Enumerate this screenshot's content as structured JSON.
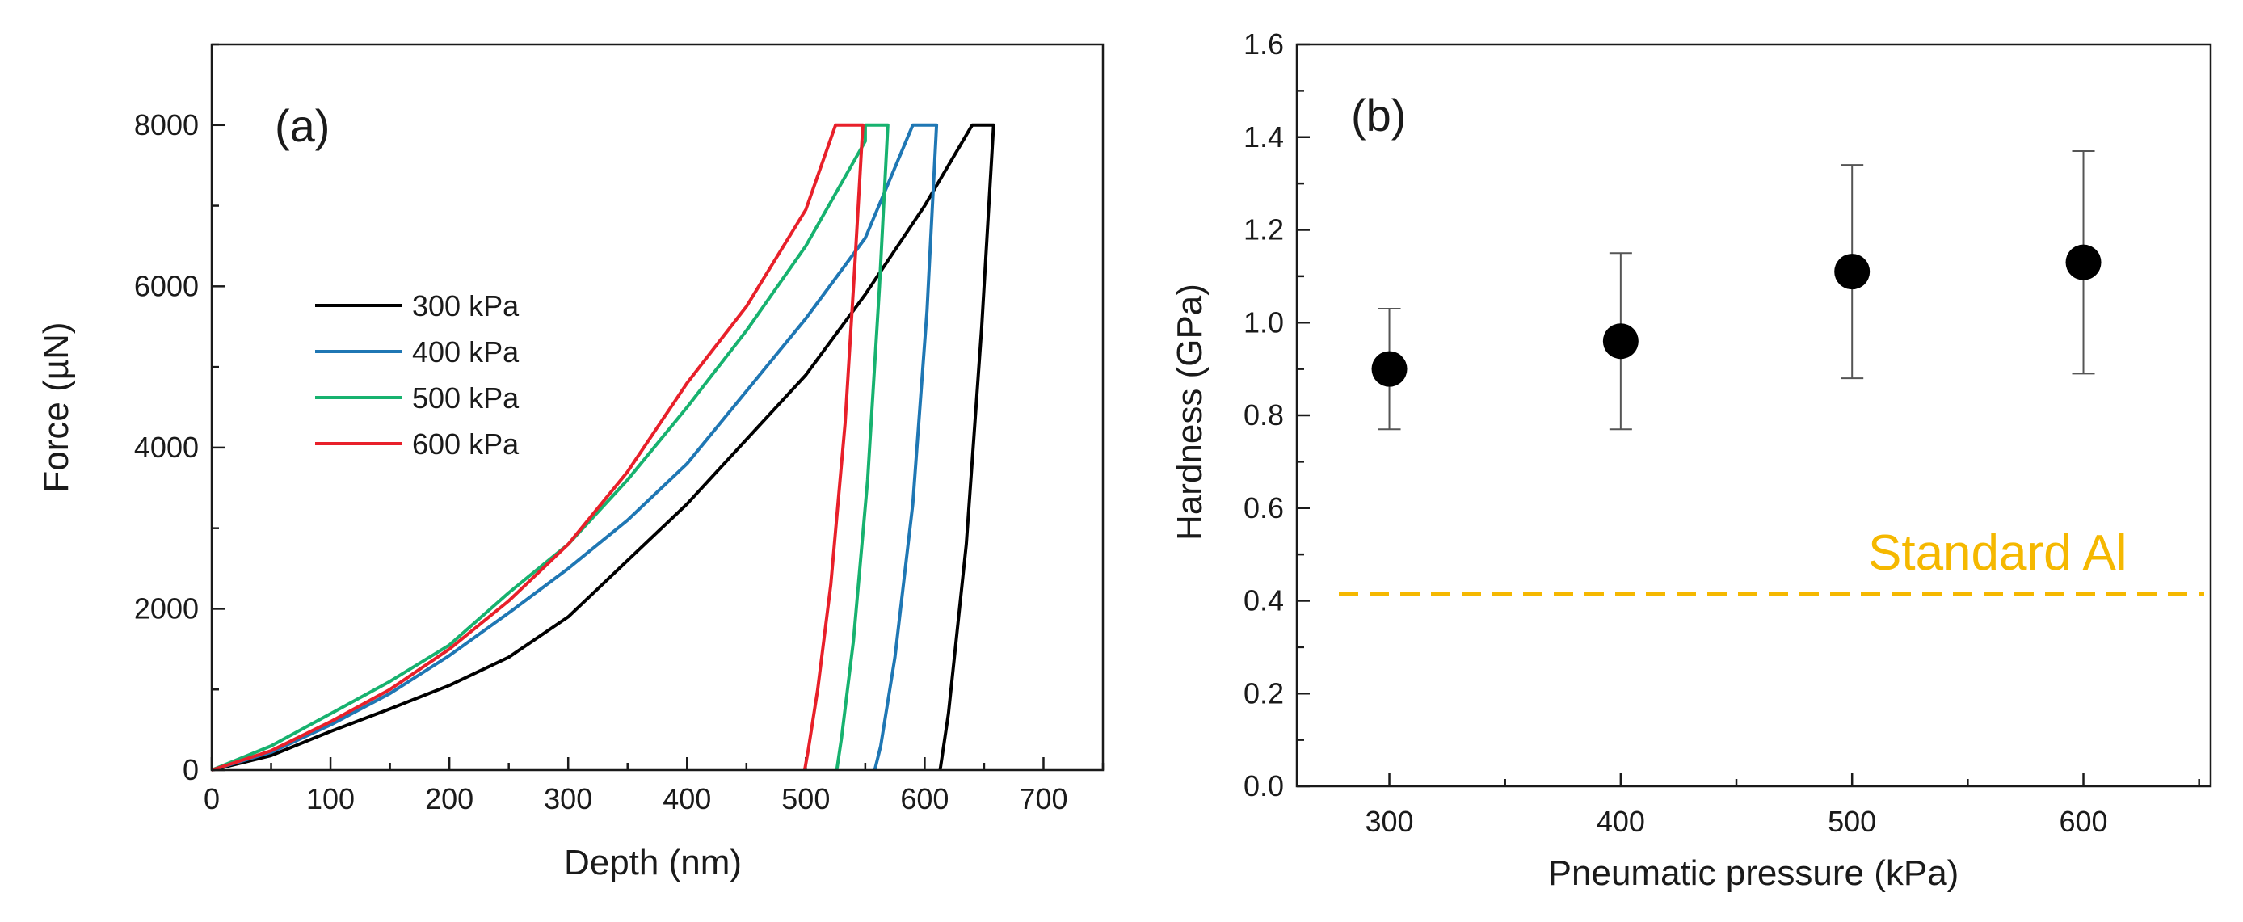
{
  "chart_data": [
    {
      "type": "line",
      "panel_label": "(a)",
      "xlabel": "Depth (nm)",
      "ylabel": "Force (µN)",
      "xlim": [
        0,
        750
      ],
      "ylim": [
        0,
        9000
      ],
      "x_ticks": [
        "0",
        "100",
        "200",
        "300",
        "400",
        "500",
        "600",
        "700"
      ],
      "y_ticks": [
        "0",
        "2000",
        "4000",
        "6000",
        "8000"
      ],
      "legend_position": "center-left",
      "series": [
        {
          "name": "300 kPa",
          "color": "#000000",
          "x": [
            0,
            50,
            100,
            150,
            200,
            250,
            300,
            350,
            400,
            450,
            500,
            550,
            600,
            640,
            658,
            648,
            635,
            620,
            613
          ],
          "y": [
            0,
            180,
            480,
            760,
            1050,
            1400,
            1900,
            2600,
            3300,
            4100,
            4900,
            5900,
            7000,
            8000,
            8000,
            5500,
            2800,
            700,
            0
          ]
        },
        {
          "name": "400 kPa",
          "color": "#1f77b4",
          "x": [
            0,
            50,
            100,
            150,
            200,
            250,
            300,
            350,
            400,
            450,
            500,
            550,
            590,
            610,
            602,
            590,
            575,
            563,
            558
          ],
          "y": [
            0,
            220,
            560,
            950,
            1420,
            1950,
            2500,
            3100,
            3800,
            4700,
            5600,
            6600,
            8000,
            8000,
            5700,
            3300,
            1400,
            300,
            0
          ]
        },
        {
          "name": "500 kPa",
          "color": "#17b26f",
          "x": [
            0,
            50,
            100,
            150,
            200,
            250,
            300,
            350,
            400,
            450,
            500,
            550,
            550,
            569,
            562,
            552,
            540,
            530,
            526
          ],
          "y": [
            0,
            300,
            700,
            1100,
            1550,
            2200,
            2800,
            3600,
            4500,
            5450,
            6500,
            7800,
            8000,
            8000,
            6000,
            3600,
            1600,
            400,
            0
          ]
        },
        {
          "name": "600 kPa",
          "color": "#e8202a",
          "x": [
            0,
            50,
            100,
            150,
            200,
            250,
            300,
            350,
            400,
            450,
            500,
            525,
            548,
            541,
            533,
            521,
            510,
            502,
            499
          ],
          "y": [
            0,
            240,
            600,
            1000,
            1500,
            2100,
            2800,
            3700,
            4800,
            5750,
            6950,
            8000,
            8000,
            6200,
            4300,
            2300,
            1000,
            250,
            0
          ]
        }
      ]
    },
    {
      "type": "scatter",
      "panel_label": "(b)",
      "xlabel": "Pneumatic pressure (kPa)",
      "ylabel": "Hardness (GPa)",
      "xlim": [
        260,
        655
      ],
      "ylim": [
        0.0,
        1.6
      ],
      "x_ticks": [
        "300",
        "400",
        "500",
        "600"
      ],
      "y_ticks": [
        "0.0",
        "0.2",
        "0.4",
        "0.6",
        "0.8",
        "1.0",
        "1.2",
        "1.4",
        "1.6"
      ],
      "points": [
        {
          "x": 300,
          "y": 0.9,
          "err_low": 0.77,
          "err_high": 1.03
        },
        {
          "x": 400,
          "y": 0.96,
          "err_low": 0.77,
          "err_high": 1.15
        },
        {
          "x": 500,
          "y": 1.11,
          "err_low": 0.88,
          "err_high": 1.34
        },
        {
          "x": 600,
          "y": 1.13,
          "err_low": 0.89,
          "err_high": 1.37
        }
      ],
      "reference_line": {
        "label": "Standard Al",
        "y": 0.415,
        "color": "#f5b800"
      }
    }
  ]
}
